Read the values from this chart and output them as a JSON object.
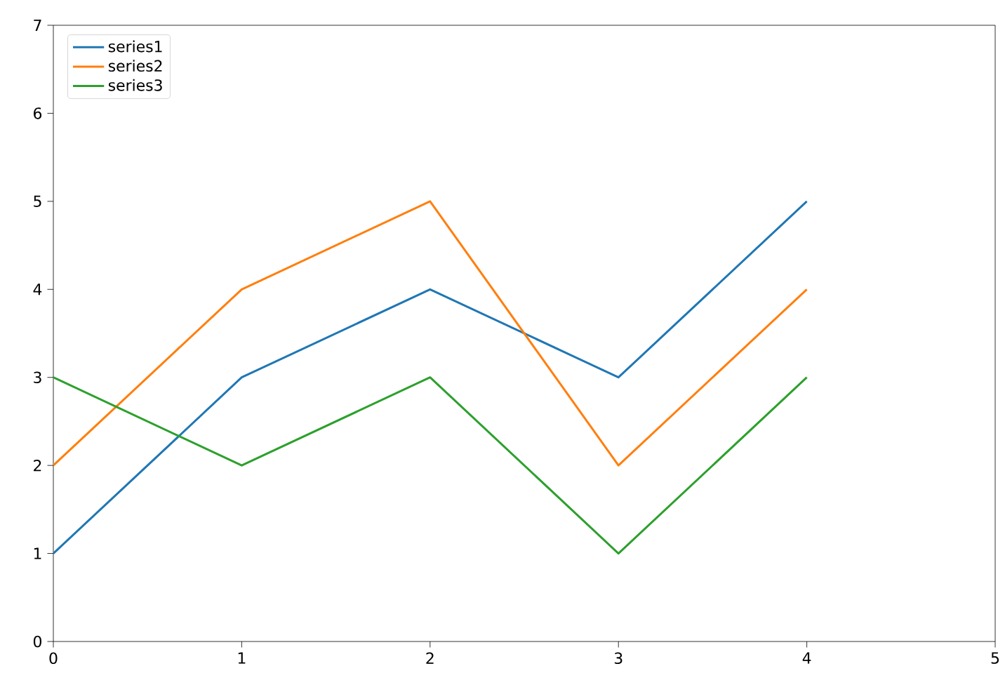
{
  "chart_data": {
    "type": "line",
    "x": [
      0,
      1,
      2,
      3,
      4
    ],
    "series": [
      {
        "name": "series1",
        "color": "#1f77b4",
        "values": [
          1,
          3,
          4,
          3,
          5
        ]
      },
      {
        "name": "series2",
        "color": "#ff7f0e",
        "values": [
          2,
          4,
          5,
          2,
          4
        ]
      },
      {
        "name": "series3",
        "color": "#2ca02c",
        "values": [
          3,
          2,
          3,
          1,
          3
        ]
      }
    ],
    "xlim": [
      0,
      5
    ],
    "ylim": [
      0,
      7
    ],
    "xticks": [
      0,
      1,
      2,
      3,
      4,
      5
    ],
    "yticks": [
      0,
      1,
      2,
      3,
      4,
      5,
      6,
      7
    ],
    "legend": "top left",
    "grid": false,
    "marker": "none",
    "line_style": "solid"
  }
}
